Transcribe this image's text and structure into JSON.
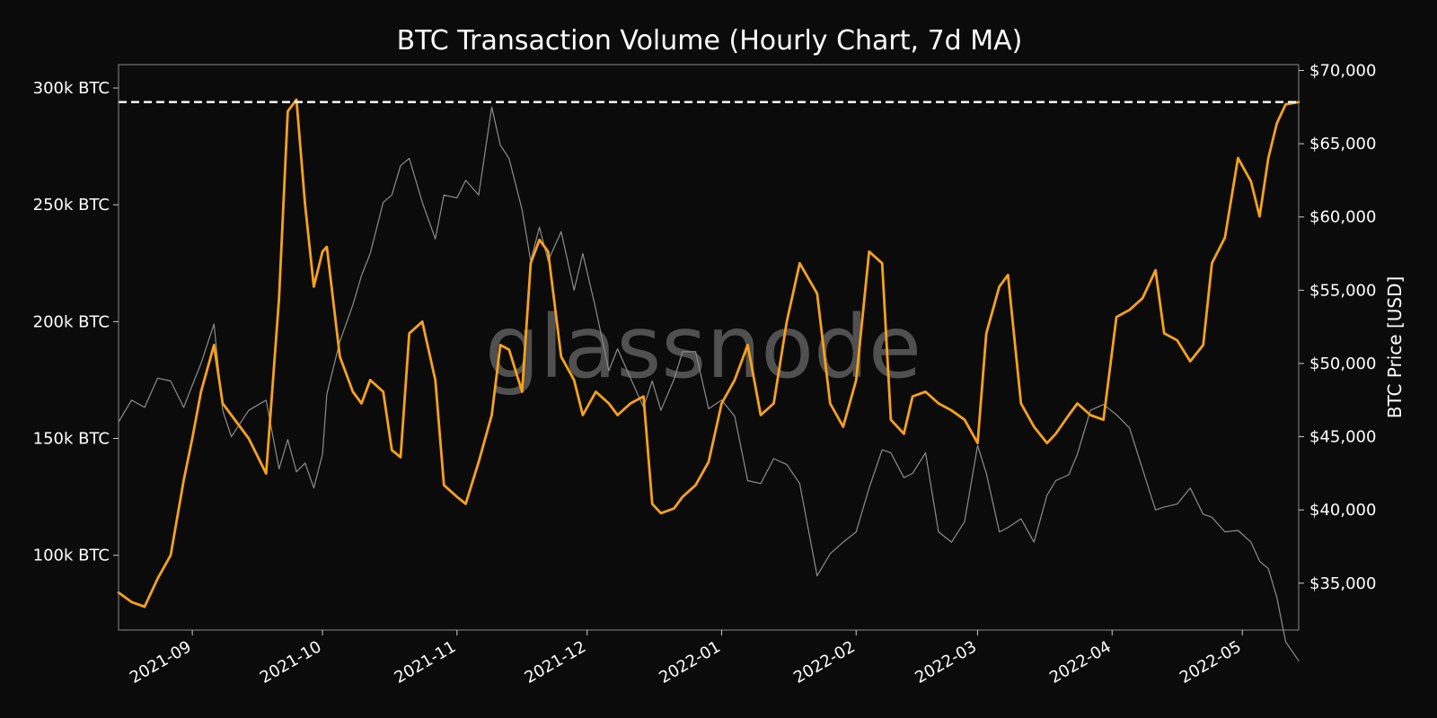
{
  "chart_data": {
    "type": "line",
    "title": "BTC Transaction Volume (Hourly Chart, 7d MA)",
    "watermark": "glassnode",
    "ylabel_left": "",
    "ylabel_right": "BTC Price [USD]",
    "x_range": [
      "2021-08-15",
      "2022-05-14"
    ],
    "ylim_left": [
      68000,
      310000
    ],
    "ylim_right": [
      31800,
      70400
    ],
    "x_ticks": [
      "2021-09",
      "2021-10",
      "2021-11",
      "2021-12",
      "2022-01",
      "2022-02",
      "2022-03",
      "2022-04",
      "2022-05"
    ],
    "y_ticks_left": [
      {
        "value": 100000,
        "label": "100k BTC"
      },
      {
        "value": 150000,
        "label": "150k BTC"
      },
      {
        "value": 200000,
        "label": "200k BTC"
      },
      {
        "value": 250000,
        "label": "250k BTC"
      },
      {
        "value": 300000,
        "label": "300k BTC"
      }
    ],
    "y_ticks_right": [
      {
        "value": 35000,
        "label": "$35,000"
      },
      {
        "value": 40000,
        "label": "$40,000"
      },
      {
        "value": 45000,
        "label": "$45,000"
      },
      {
        "value": 50000,
        "label": "$50,000"
      },
      {
        "value": 55000,
        "label": "$55,000"
      },
      {
        "value": 60000,
        "label": "$60,000"
      },
      {
        "value": 65000,
        "label": "$65,000"
      },
      {
        "value": 70000,
        "label": "$70,000"
      }
    ],
    "reference_line": {
      "axis": "left",
      "value": 294000,
      "style": "dashed",
      "color": "#ffffff"
    },
    "grid": false,
    "colors": {
      "volume": "#f7a21b",
      "price": "#8c8c8c",
      "background": "#0b0b0b",
      "frame": "#8a8a8a"
    },
    "series": [
      {
        "axis": "left",
        "color": "#f7a21b",
        "x": [
          "2021-08-15",
          "2021-08-18",
          "2021-08-21",
          "2021-08-24",
          "2021-08-27",
          "2021-08-30",
          "2021-09-01",
          "2021-09-03",
          "2021-09-06",
          "2021-09-08",
          "2021-09-10",
          "2021-09-14",
          "2021-09-18",
          "2021-09-21",
          "2021-09-23",
          "2021-09-25",
          "2021-09-27",
          "2021-09-29",
          "2021-10-01",
          "2021-10-02",
          "2021-10-05",
          "2021-10-08",
          "2021-10-10",
          "2021-10-12",
          "2021-10-15",
          "2021-10-17",
          "2021-10-19",
          "2021-10-21",
          "2021-10-24",
          "2021-10-27",
          "2021-10-29",
          "2021-11-01",
          "2021-11-03",
          "2021-11-06",
          "2021-11-09",
          "2021-11-11",
          "2021-11-13",
          "2021-11-16",
          "2021-11-18",
          "2021-11-20",
          "2021-11-22",
          "2021-11-25",
          "2021-11-28",
          "2021-11-30",
          "2021-12-03",
          "2021-12-06",
          "2021-12-08",
          "2021-12-11",
          "2021-12-14",
          "2021-12-16",
          "2021-12-18",
          "2021-12-21",
          "2021-12-23",
          "2021-12-26",
          "2021-12-29",
          "2022-01-01",
          "2022-01-04",
          "2022-01-07",
          "2022-01-10",
          "2022-01-13",
          "2022-01-16",
          "2022-01-19",
          "2022-01-23",
          "2022-01-26",
          "2022-01-29",
          "2022-02-01",
          "2022-02-04",
          "2022-02-07",
          "2022-02-09",
          "2022-02-12",
          "2022-02-14",
          "2022-02-17",
          "2022-02-20",
          "2022-02-23",
          "2022-02-26",
          "2022-03-01",
          "2022-03-03",
          "2022-03-06",
          "2022-03-08",
          "2022-03-11",
          "2022-03-14",
          "2022-03-17",
          "2022-03-19",
          "2022-03-22",
          "2022-03-24",
          "2022-03-27",
          "2022-03-30",
          "2022-04-02",
          "2022-04-05",
          "2022-04-08",
          "2022-04-11",
          "2022-04-13",
          "2022-04-16",
          "2022-04-19",
          "2022-04-22",
          "2022-04-24",
          "2022-04-27",
          "2022-04-30",
          "2022-05-03",
          "2022-05-05",
          "2022-05-07",
          "2022-05-09",
          "2022-05-11",
          "2022-05-14"
        ],
        "values": [
          84000,
          80000,
          78000,
          90000,
          100000,
          132000,
          150000,
          170000,
          190000,
          165000,
          160000,
          150000,
          135000,
          210000,
          290000,
          295000,
          250000,
          215000,
          230000,
          232000,
          185000,
          170000,
          165000,
          175000,
          170000,
          145000,
          142000,
          195000,
          200000,
          175000,
          130000,
          125000,
          122000,
          140000,
          160000,
          190000,
          188000,
          170000,
          225000,
          235000,
          230000,
          185000,
          175000,
          160000,
          170000,
          165000,
          160000,
          165000,
          168000,
          122000,
          118000,
          120000,
          125000,
          130000,
          140000,
          165000,
          175000,
          190000,
          160000,
          165000,
          200000,
          225000,
          212000,
          165000,
          155000,
          175000,
          230000,
          225000,
          158000,
          152000,
          168000,
          170000,
          165000,
          162000,
          158000,
          148000,
          195000,
          215000,
          220000,
          165000,
          155000,
          148000,
          152000,
          160000,
          165000,
          160000,
          158000,
          202000,
          205000,
          210000,
          222000,
          195000,
          192000,
          183000,
          190000,
          225000,
          236000,
          270000,
          260000,
          245000,
          270000,
          285000,
          293000,
          294000
        ]
      },
      {
        "axis": "right",
        "color": "#8c8c8c",
        "x": [
          "2021-08-15",
          "2021-08-18",
          "2021-08-21",
          "2021-08-24",
          "2021-08-27",
          "2021-08-30",
          "2021-09-01",
          "2021-09-03",
          "2021-09-06",
          "2021-09-08",
          "2021-09-10",
          "2021-09-14",
          "2021-09-18",
          "2021-09-21",
          "2021-09-23",
          "2021-09-25",
          "2021-09-27",
          "2021-09-29",
          "2021-10-01",
          "2021-10-02",
          "2021-10-05",
          "2021-10-08",
          "2021-10-10",
          "2021-10-12",
          "2021-10-15",
          "2021-10-17",
          "2021-10-19",
          "2021-10-21",
          "2021-10-24",
          "2021-10-27",
          "2021-10-29",
          "2021-11-01",
          "2021-11-03",
          "2021-11-06",
          "2021-11-09",
          "2021-11-11",
          "2021-11-13",
          "2021-11-16",
          "2021-11-18",
          "2021-11-20",
          "2021-11-22",
          "2021-11-25",
          "2021-11-28",
          "2021-11-30",
          "2021-12-03",
          "2021-12-06",
          "2021-12-08",
          "2021-12-11",
          "2021-12-14",
          "2021-12-16",
          "2021-12-18",
          "2021-12-21",
          "2021-12-23",
          "2021-12-26",
          "2021-12-29",
          "2022-01-01",
          "2022-01-04",
          "2022-01-07",
          "2022-01-10",
          "2022-01-13",
          "2022-01-16",
          "2022-01-19",
          "2022-01-23",
          "2022-01-26",
          "2022-01-29",
          "2022-02-01",
          "2022-02-04",
          "2022-02-07",
          "2022-02-09",
          "2022-02-12",
          "2022-02-14",
          "2022-02-17",
          "2022-02-20",
          "2022-02-23",
          "2022-02-26",
          "2022-03-01",
          "2022-03-03",
          "2022-03-06",
          "2022-03-08",
          "2022-03-11",
          "2022-03-14",
          "2022-03-17",
          "2022-03-19",
          "2022-03-22",
          "2022-03-24",
          "2022-03-27",
          "2022-03-30",
          "2022-04-02",
          "2022-04-05",
          "2022-04-08",
          "2022-04-11",
          "2022-04-13",
          "2022-04-16",
          "2022-04-19",
          "2022-04-22",
          "2022-04-24",
          "2022-04-27",
          "2022-04-30",
          "2022-05-03",
          "2022-05-05",
          "2022-05-07",
          "2022-05-09",
          "2022-05-11",
          "2022-05-14"
        ],
        "values": [
          46000,
          47500,
          47000,
          49000,
          48800,
          47000,
          48500,
          50000,
          52700,
          46800,
          45000,
          46800,
          47500,
          42800,
          44800,
          42600,
          43200,
          41500,
          43800,
          47900,
          51500,
          54000,
          56000,
          57500,
          61000,
          61500,
          63500,
          64000,
          61000,
          58500,
          61500,
          61300,
          62500,
          61500,
          67500,
          64900,
          64000,
          60500,
          57000,
          59300,
          57000,
          59000,
          55000,
          57500,
          53700,
          49500,
          51000,
          49000,
          47000,
          48800,
          46800,
          48900,
          50800,
          50800,
          46900,
          47500,
          46400,
          42000,
          41800,
          43500,
          43100,
          41800,
          35500,
          37000,
          37800,
          38500,
          41500,
          44100,
          43900,
          42200,
          42500,
          43900,
          38500,
          37800,
          39200,
          44400,
          42500,
          38500,
          38800,
          39400,
          37800,
          41000,
          42000,
          42400,
          43800,
          46800,
          47200,
          46500,
          45600,
          42800,
          40000,
          40200,
          40400,
          41500,
          39700,
          39500,
          38500,
          38600,
          37800,
          36500,
          36000,
          34000,
          31000,
          29700
        ]
      }
    ]
  }
}
